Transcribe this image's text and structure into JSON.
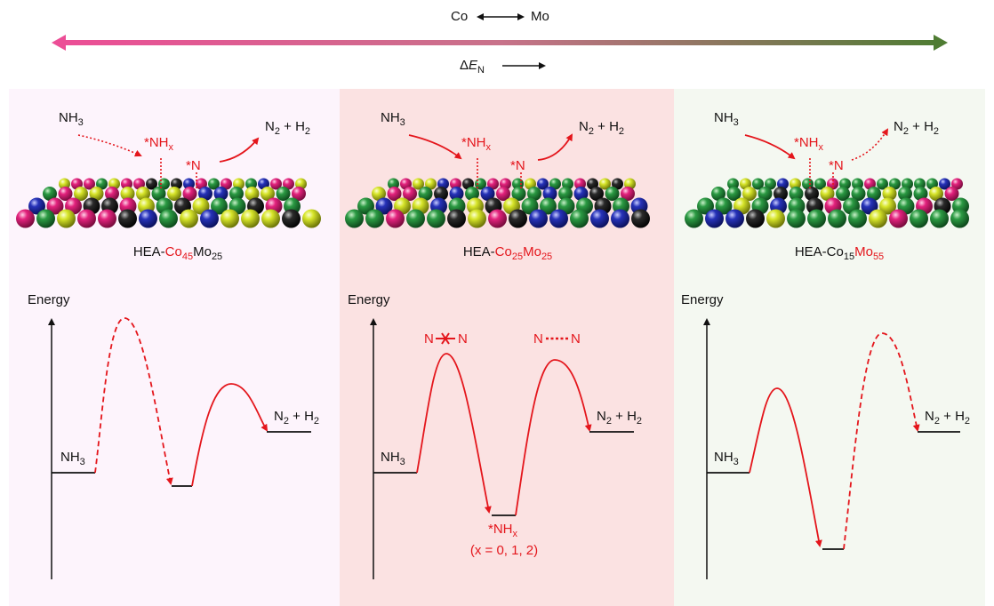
{
  "header": {
    "co_label": "Co",
    "mo_label": "Mo",
    "delta_symbol": "Δ",
    "delta_var": "E",
    "delta_sub": "N",
    "gradient_left": "#ec4e96",
    "gradient_right": "#4f7c33"
  },
  "colors": {
    "accent_red": "#e4161c",
    "panel_backgrounds": [
      "#fdf4fc",
      "#fbe2e2",
      "#f4f8f1"
    ],
    "atoms": {
      "magenta": "#e3227d",
      "blue": "#2632b8",
      "green": "#2b9a43",
      "yellow": "#d7e52a",
      "black": "#2a2a2a"
    }
  },
  "common": {
    "nh3_main": "NH",
    "nh3_sub": "3",
    "nhx_main": "*NH",
    "nhx_sub": "x",
    "n_ads": "*N",
    "n2": "N",
    "n2_sub": "2",
    "plus_h2": " + H",
    "h2_sub": "2",
    "energy_axis": "Energy"
  },
  "panels": [
    {
      "id": "co45mo25",
      "catalyst": {
        "prefix": "HEA-",
        "co": "Co",
        "co_sub": "45",
        "mo": "Mo",
        "mo_sub": "25",
        "co_highlight": true,
        "mo_highlight": false
      },
      "path_style": [
        "dotted",
        "solid"
      ],
      "barrier_style": [
        "dashed",
        "solid"
      ]
    },
    {
      "id": "co25mo25",
      "catalyst": {
        "prefix": "HEA-",
        "co": "Co",
        "co_sub": "25",
        "mo": "Mo",
        "mo_sub": "25",
        "co_highlight": true,
        "mo_highlight": true
      },
      "path_style": [
        "solid",
        "solid"
      ],
      "barrier_style": [
        "solid",
        "solid"
      ],
      "n2_broken": "N",
      "n2_forming": "N",
      "x_note": "(x = 0, 1, 2)"
    },
    {
      "id": "co15mo55",
      "catalyst": {
        "prefix": "HEA-",
        "co": "Co",
        "co_sub": "15",
        "mo": "Mo",
        "mo_sub": "55",
        "co_highlight": false,
        "mo_highlight": true
      },
      "path_style": [
        "solid",
        "dotted"
      ],
      "barrier_style": [
        "solid",
        "dashed"
      ]
    }
  ]
}
